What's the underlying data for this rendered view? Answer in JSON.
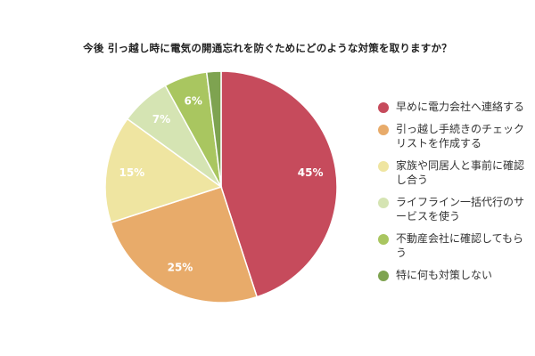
{
  "chart_data": {
    "type": "pie",
    "title": "今後 引っ越し時に電気の開通忘れを防ぐためにどのような対策を取りますか？",
    "slices": [
      {
        "label": "早めに電力会社へ連絡する",
        "legend_text": "早めに電力会社へ連絡する",
        "value": 45,
        "value_label": "45%",
        "color": "#c64b5c"
      },
      {
        "label": "引っ越し手続きのチェックリストを作成する",
        "legend_text": "引っ越し手続きのチェック\nリストを作成する",
        "value": 25,
        "value_label": "25%",
        "color": "#e8ab6a"
      },
      {
        "label": "家族や同居人と事前に確認し合う",
        "legend_text": "家族や同居人と事前に確認\nし合う",
        "value": 15,
        "value_label": "15%",
        "color": "#efe5a1"
      },
      {
        "label": "ライフライン一括代行のサービスを使う",
        "legend_text": "ライフライン一括代行のサ\nービスを使う",
        "value": 7,
        "value_label": "7%",
        "color": "#d5e4b3"
      },
      {
        "label": "不動産会社に確認してもらう",
        "legend_text": "不動産会社に確認してもら\nう",
        "value": 6,
        "value_label": "6%",
        "color": "#a9c660"
      },
      {
        "label": "特に何も対策しない",
        "legend_text": "特に何も対策しない",
        "value": 2,
        "value_label": "",
        "color": "#7ea350"
      }
    ],
    "legend_position": "right"
  }
}
